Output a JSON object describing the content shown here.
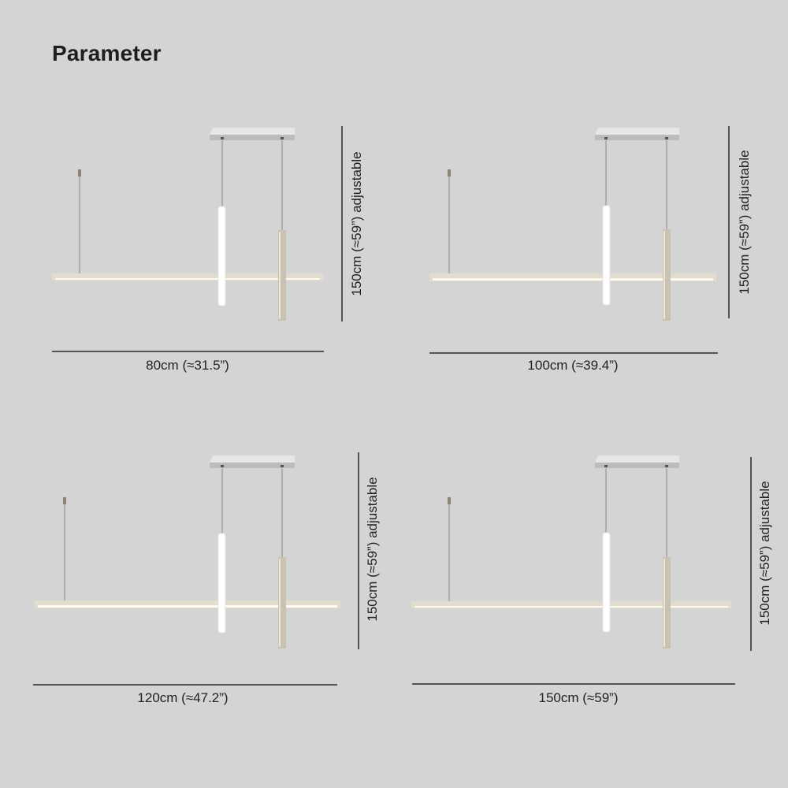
{
  "title": "Parameter",
  "colors": {
    "background": "#d4d4d4",
    "rail": "#e2dccf",
    "rail_glow": "#fffaf0",
    "canopy": "#c8c8c8",
    "bronze_bar": "#c9c2b2",
    "white_bar": "#ffffff",
    "dimension_line": "#2a2a2a"
  },
  "variants": [
    {
      "width_label": "80cm (≈31.5”)",
      "height_label": "150cm (≈59”) adjustable"
    },
    {
      "width_label": "100cm (≈39.4”)",
      "height_label": "150cm (≈59”) adjustable"
    },
    {
      "width_label": "120cm (≈47.2”)",
      "height_label": "150cm (≈59”) adjustable"
    },
    {
      "width_label": "150cm (≈59”)",
      "height_label": "150cm (≈59”) adjustable"
    }
  ]
}
